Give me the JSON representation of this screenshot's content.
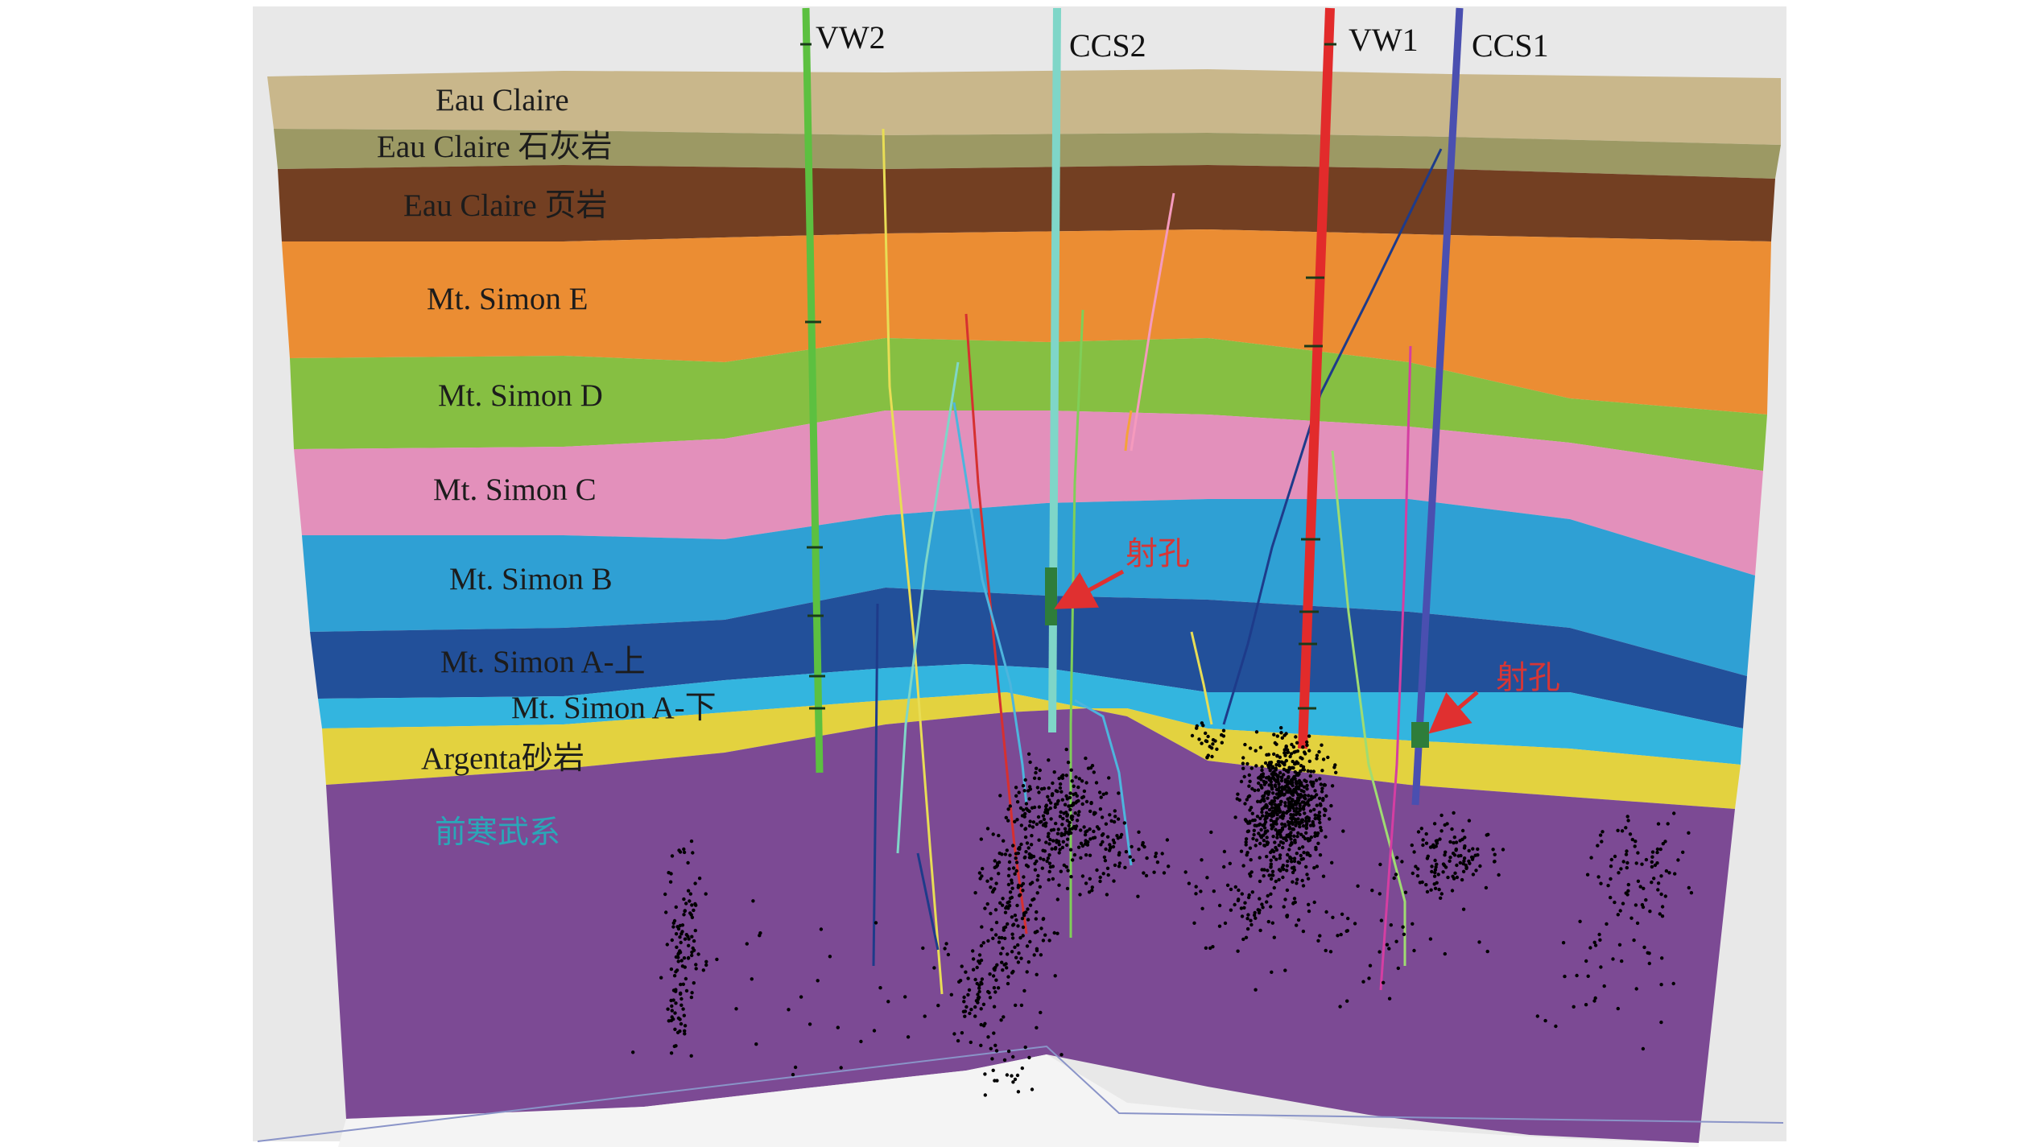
{
  "formations": [
    {
      "id": "eau-claire",
      "label": "Eau Claire",
      "color": "#c9b78b"
    },
    {
      "id": "eau-claire-ls",
      "label": "Eau Claire 石灰岩",
      "color": "#9c9964"
    },
    {
      "id": "eau-claire-shale",
      "label": "Eau Claire 页岩",
      "color": "#733f22"
    },
    {
      "id": "mt-simon-e",
      "label": "Mt. Simon E",
      "color": "#eb8d33"
    },
    {
      "id": "mt-simon-d",
      "label": "Mt. Simon D",
      "color": "#86bf42"
    },
    {
      "id": "mt-simon-c",
      "label": "Mt. Simon C",
      "color": "#e390bb"
    },
    {
      "id": "mt-simon-b",
      "label": "Mt. Simon B",
      "color": "#2fa0d4"
    },
    {
      "id": "mt-simon-a-upper",
      "label": "Mt. Simon A-上",
      "color": "#22509a"
    },
    {
      "id": "mt-simon-a-lower",
      "label": "Mt. Simon A-下",
      "color": "#33b5df"
    },
    {
      "id": "argenta",
      "label": "Argenta砂岩",
      "color": "#e3d23f"
    },
    {
      "id": "precambrian",
      "label": "前寒武系",
      "color": "#7c4a94"
    }
  ],
  "wells": [
    {
      "id": "vw2",
      "label": "VW2",
      "color": "#5cc040"
    },
    {
      "id": "ccs2",
      "label": "CCS2",
      "color": "#7fd6c8"
    },
    {
      "id": "vw1",
      "label": "VW1",
      "color": "#e22b2b"
    },
    {
      "id": "ccs1",
      "label": "CCS1",
      "color": "#4a4fb0"
    }
  ],
  "perforations": [
    {
      "id": "perf-ccs2",
      "label": "射孔"
    },
    {
      "id": "perf-ccs1",
      "label": "射孔"
    }
  ],
  "colors": {
    "background": "#e8e8e8",
    "microseismic_event": "#000000",
    "perforation_arrow": "#e03030",
    "perforation_marker": "#2e7d3a"
  }
}
